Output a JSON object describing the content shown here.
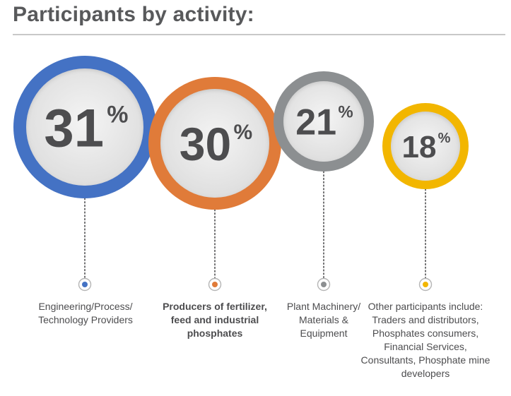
{
  "title": "Participants by activity:",
  "chart_data": {
    "type": "bubble",
    "title": "Participants by activity:",
    "unit": "%",
    "categories": [
      "Engineering/Process/ Technology Providers",
      "Producers of fertilizer, feed and industrial phosphates",
      "Plant Machinery/ Materials & Equipment",
      "Other participants include: Traders and distributors, Phosphates consumers, Financial Services, Consultants, Phosphate mine developers"
    ],
    "values": [
      31,
      30,
      21,
      18
    ],
    "colors": [
      "#4472c4",
      "#e07b39",
      "#8c8f91",
      "#f2b600"
    ],
    "items": [
      {
        "value": "31",
        "percent": "%",
        "label_lines": [
          "Engineering/Process/",
          "Technology Providers"
        ],
        "bold": false
      },
      {
        "value": "30",
        "percent": "%",
        "label_lines": [
          "Producers of fertilizer,",
          "feed and industrial",
          "phosphates"
        ],
        "bold": true
      },
      {
        "value": "21",
        "percent": "%",
        "label_lines": [
          "Plant Machinery/",
          "Materials &",
          "Equipment"
        ],
        "bold": false
      },
      {
        "value": "18",
        "percent": "%",
        "label_lines": [
          "Other participants include:",
          "Traders and distributors,",
          "Phosphates consumers,",
          "Financial Services,",
          "Consultants, Phosphate mine",
          "developers"
        ],
        "bold": false
      }
    ]
  }
}
